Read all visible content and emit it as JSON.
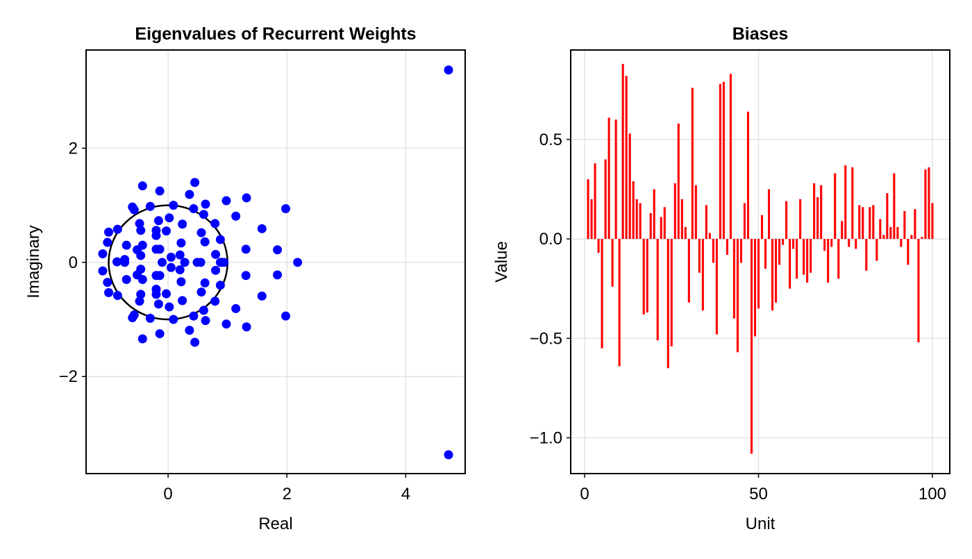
{
  "chart_data": [
    {
      "type": "scatter",
      "title": "Eigenvalues of Recurrent Weights",
      "xlabel": "Real",
      "ylabel": "Imaginary",
      "xlim": [
        -1.38,
        5.0
      ],
      "ylim": [
        -3.7,
        3.72
      ],
      "xticks": [
        0,
        2,
        4
      ],
      "xtick_labels": [
        "0",
        "2",
        "4"
      ],
      "yticks": [
        -2,
        0,
        2
      ],
      "ytick_labels": [
        "−2",
        "0",
        "2"
      ],
      "grid": true,
      "marker_color": "#0000ff",
      "circle_color": "#000000",
      "unit_circle": {
        "center": [
          0,
          0
        ],
        "radius": 1
      },
      "points": [
        [
          4.72,
          3.37
        ],
        [
          4.72,
          -3.37
        ],
        [
          2.18,
          0.0
        ],
        [
          1.98,
          0.94
        ],
        [
          1.98,
          -0.94
        ],
        [
          1.84,
          0.22
        ],
        [
          1.84,
          -0.22
        ],
        [
          1.58,
          0.59
        ],
        [
          1.58,
          -0.59
        ],
        [
          1.32,
          1.13
        ],
        [
          1.32,
          -1.13
        ],
        [
          1.31,
          0.23
        ],
        [
          1.31,
          -0.23
        ],
        [
          1.14,
          0.81
        ],
        [
          1.14,
          -0.81
        ],
        [
          0.98,
          1.08
        ],
        [
          0.98,
          -1.08
        ],
        [
          0.94,
          0.0
        ],
        [
          0.9,
          0.0
        ],
        [
          0.88,
          0.0
        ],
        [
          0.88,
          0.4
        ],
        [
          0.88,
          -0.4
        ],
        [
          0.79,
          0.68
        ],
        [
          0.79,
          -0.68
        ],
        [
          0.8,
          0.14
        ],
        [
          0.8,
          -0.14
        ],
        [
          0.63,
          1.02
        ],
        [
          0.63,
          -1.02
        ],
        [
          0.62,
          0.36
        ],
        [
          0.62,
          -0.36
        ],
        [
          0.6,
          0.84
        ],
        [
          0.6,
          -0.84
        ],
        [
          0.56,
          0.52
        ],
        [
          0.56,
          -0.52
        ],
        [
          0.55,
          0.0
        ],
        [
          0.49,
          0.0
        ],
        [
          0.45,
          1.4
        ],
        [
          0.45,
          -1.4
        ],
        [
          0.43,
          0.94
        ],
        [
          0.43,
          -0.94
        ],
        [
          0.36,
          1.19
        ],
        [
          0.36,
          -1.19
        ],
        [
          0.28,
          0.0
        ],
        [
          0.24,
          0.67
        ],
        [
          0.24,
          -0.67
        ],
        [
          0.22,
          0.34
        ],
        [
          0.22,
          -0.34
        ],
        [
          0.2,
          0.13
        ],
        [
          0.2,
          -0.13
        ],
        [
          0.09,
          1.0
        ],
        [
          0.09,
          -1.0
        ],
        [
          0.05,
          0.09
        ],
        [
          0.05,
          -0.09
        ],
        [
          0.02,
          0.78
        ],
        [
          0.02,
          -0.78
        ],
        [
          -0.03,
          0.55
        ],
        [
          -0.03,
          -0.55
        ],
        [
          -0.1,
          0.0
        ],
        [
          -0.14,
          0.23
        ],
        [
          -0.14,
          -0.23
        ],
        [
          -0.14,
          1.25
        ],
        [
          -0.14,
          -1.25
        ],
        [
          -0.16,
          0.73
        ],
        [
          -0.16,
          -0.73
        ],
        [
          -0.2,
          0.47
        ],
        [
          -0.2,
          -0.47
        ],
        [
          -0.2,
          0.23
        ],
        [
          -0.2,
          -0.23
        ],
        [
          -0.2,
          0.56
        ],
        [
          -0.2,
          -0.56
        ],
        [
          -0.3,
          0.98
        ],
        [
          -0.3,
          -0.98
        ],
        [
          -0.43,
          1.34
        ],
        [
          -0.43,
          -1.34
        ],
        [
          -0.43,
          0.3
        ],
        [
          -0.43,
          -0.3
        ],
        [
          -0.46,
          0.12
        ],
        [
          -0.46,
          -0.12
        ],
        [
          -0.46,
          0.56
        ],
        [
          -0.46,
          -0.56
        ],
        [
          -0.48,
          0.68
        ],
        [
          -0.48,
          -0.68
        ],
        [
          -0.52,
          0.22
        ],
        [
          -0.52,
          -0.22
        ],
        [
          -0.57,
          0.92
        ],
        [
          -0.57,
          -0.92
        ],
        [
          -0.6,
          0.97
        ],
        [
          -0.6,
          -0.97
        ],
        [
          -0.73,
          0.0
        ],
        [
          -0.73,
          0.05
        ],
        [
          -0.7,
          0.3
        ],
        [
          -0.7,
          -0.3
        ],
        [
          -0.86,
          0.01
        ],
        [
          -0.85,
          0.58
        ],
        [
          -0.85,
          -0.58
        ],
        [
          -1.0,
          0.53
        ],
        [
          -1.0,
          -0.53
        ],
        [
          -1.02,
          0.35
        ],
        [
          -1.02,
          -0.35
        ],
        [
          -1.1,
          0.15
        ],
        [
          -1.1,
          -0.15
        ]
      ]
    },
    {
      "type": "bar",
      "title": "Biases",
      "xlabel": "Unit",
      "ylabel": "Value",
      "xlim": [
        -4,
        105
      ],
      "ylim": [
        -1.18,
        0.95
      ],
      "xticks": [
        0,
        50,
        100
      ],
      "xtick_labels": [
        "0",
        "50",
        "100"
      ],
      "yticks": [
        -1.0,
        -0.5,
        0.0,
        0.5
      ],
      "ytick_labels": [
        "−1.0",
        "−0.5",
        "0.0",
        "0.5"
      ],
      "grid": true,
      "bar_color": "#ff0000",
      "x": [
        1,
        2,
        3,
        4,
        5,
        6,
        7,
        8,
        9,
        10,
        11,
        12,
        13,
        14,
        15,
        16,
        17,
        18,
        19,
        20,
        21,
        22,
        23,
        24,
        25,
        26,
        27,
        28,
        29,
        30,
        31,
        32,
        33,
        34,
        35,
        36,
        37,
        38,
        39,
        40,
        41,
        42,
        43,
        44,
        45,
        46,
        47,
        48,
        49,
        50,
        51,
        52,
        53,
        54,
        55,
        56,
        57,
        58,
        59,
        60,
        61,
        62,
        63,
        64,
        65,
        66,
        67,
        68,
        69,
        70,
        71,
        72,
        73,
        74,
        75,
        76,
        77,
        78,
        79,
        80,
        81,
        82,
        83,
        84,
        85,
        86,
        87,
        88,
        89,
        90,
        91,
        92,
        93,
        94,
        95,
        96,
        97,
        98,
        99,
        100
      ],
      "values": [
        0.3,
        0.2,
        0.38,
        -0.07,
        -0.55,
        0.4,
        0.61,
        -0.24,
        0.6,
        -0.64,
        0.88,
        0.82,
        0.53,
        0.29,
        0.2,
        0.18,
        -0.38,
        -0.37,
        0.13,
        0.25,
        -0.51,
        0.11,
        0.16,
        -0.65,
        -0.54,
        0.28,
        0.58,
        0.2,
        0.06,
        -0.32,
        0.76,
        0.27,
        -0.17,
        -0.36,
        0.17,
        0.03,
        -0.12,
        -0.48,
        0.78,
        0.79,
        -0.08,
        0.83,
        -0.4,
        -0.57,
        -0.12,
        0.18,
        0.64,
        -1.08,
        -0.49,
        -0.35,
        0.12,
        -0.15,
        0.25,
        -0.36,
        -0.32,
        -0.13,
        -0.03,
        0.19,
        -0.25,
        -0.05,
        -0.2,
        0.2,
        -0.18,
        -0.22,
        -0.17,
        0.28,
        0.21,
        0.27,
        -0.06,
        -0.22,
        -0.04,
        0.33,
        -0.2,
        0.09,
        0.37,
        -0.04,
        0.36,
        -0.05,
        0.17,
        0.16,
        -0.16,
        0.16,
        0.17,
        -0.11,
        0.1,
        0.02,
        0.23,
        0.06,
        0.33,
        0.06,
        -0.04,
        0.14,
        -0.13,
        0.02,
        0.15,
        -0.52,
        0.01,
        0.35,
        0.36,
        0.18
      ]
    }
  ]
}
